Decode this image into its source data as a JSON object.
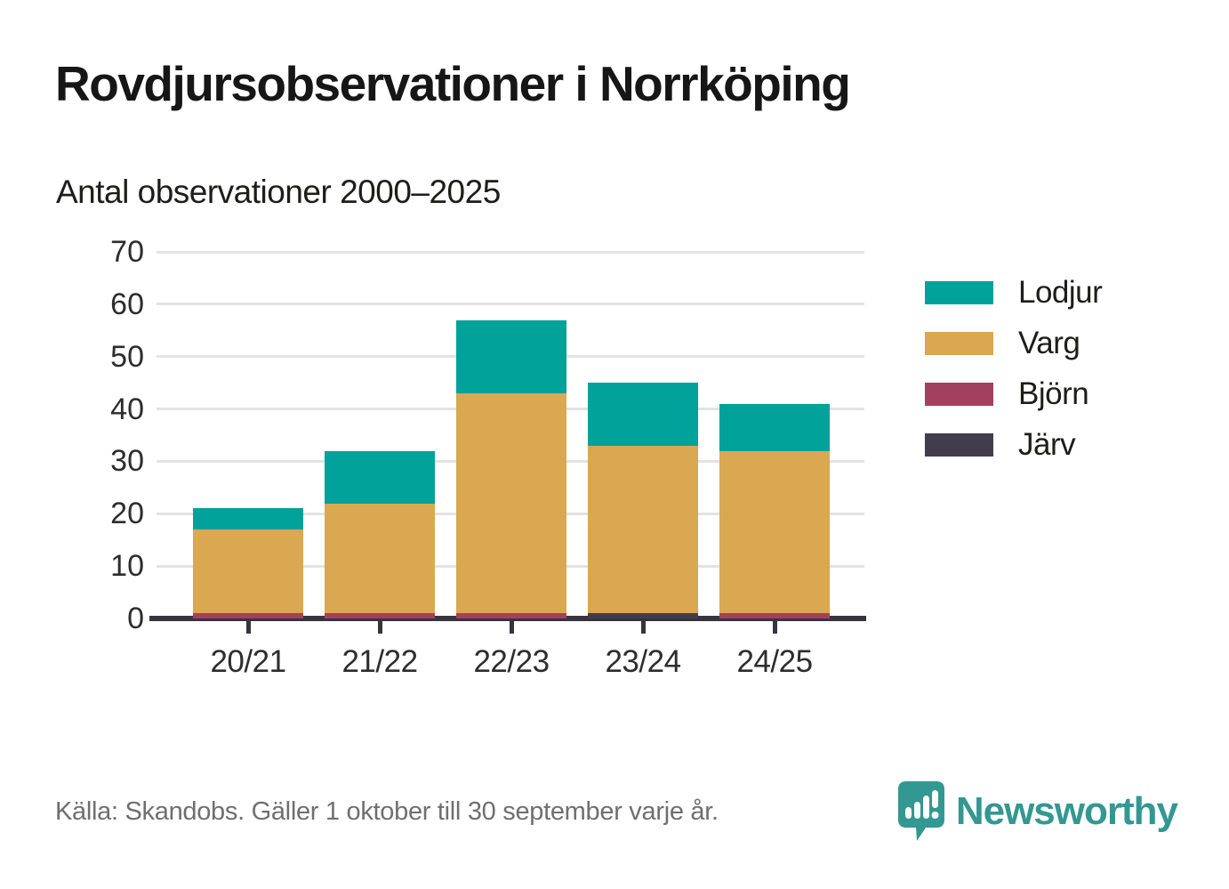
{
  "page": {
    "title": "Rovdjursobservationer i Norrköping",
    "subtitle": "Antal observationer 2000–2025",
    "source": "Källa: Skandobs. Gäller 1 oktober till 30 september varje år.",
    "brand_name": "Newsworthy"
  },
  "colors": {
    "lodjur_teal": "#00a29a",
    "varg_gold": "#d9a851",
    "bjorn_maroon": "#a33f5f",
    "jarv_charcoal": "#423d4c",
    "gridline": "#e3e3e3",
    "axis": "#38343f",
    "brand_teal": "#339792",
    "footer_gray": "#6f6f6f"
  },
  "chart_data": {
    "type": "bar",
    "stacked": true,
    "title": "Rovdjursobservationer i Norrköping",
    "subtitle": "Antal observationer 2000–2025",
    "categories": [
      "20/21",
      "21/22",
      "22/23",
      "23/24",
      "24/25"
    ],
    "series": [
      {
        "name": "Lodjur",
        "color": "#00a29a",
        "values": [
          4,
          10,
          14,
          12,
          9
        ]
      },
      {
        "name": "Varg",
        "color": "#d9a851",
        "values": [
          16,
          21,
          42,
          32,
          31
        ]
      },
      {
        "name": "Björn",
        "color": "#a33f5f",
        "values": [
          1,
          1,
          1,
          0,
          1
        ]
      },
      {
        "name": "Järv",
        "color": "#423d4c",
        "values": [
          0,
          0,
          0,
          1,
          0
        ]
      }
    ],
    "stack_totals": [
      21,
      32,
      57,
      45,
      41
    ],
    "xlabel": "",
    "ylabel": "",
    "ylim": [
      0,
      70
    ],
    "yticks": [
      0,
      10,
      20,
      30,
      40,
      50,
      60,
      70
    ],
    "grid": true,
    "legend_position": "right"
  }
}
